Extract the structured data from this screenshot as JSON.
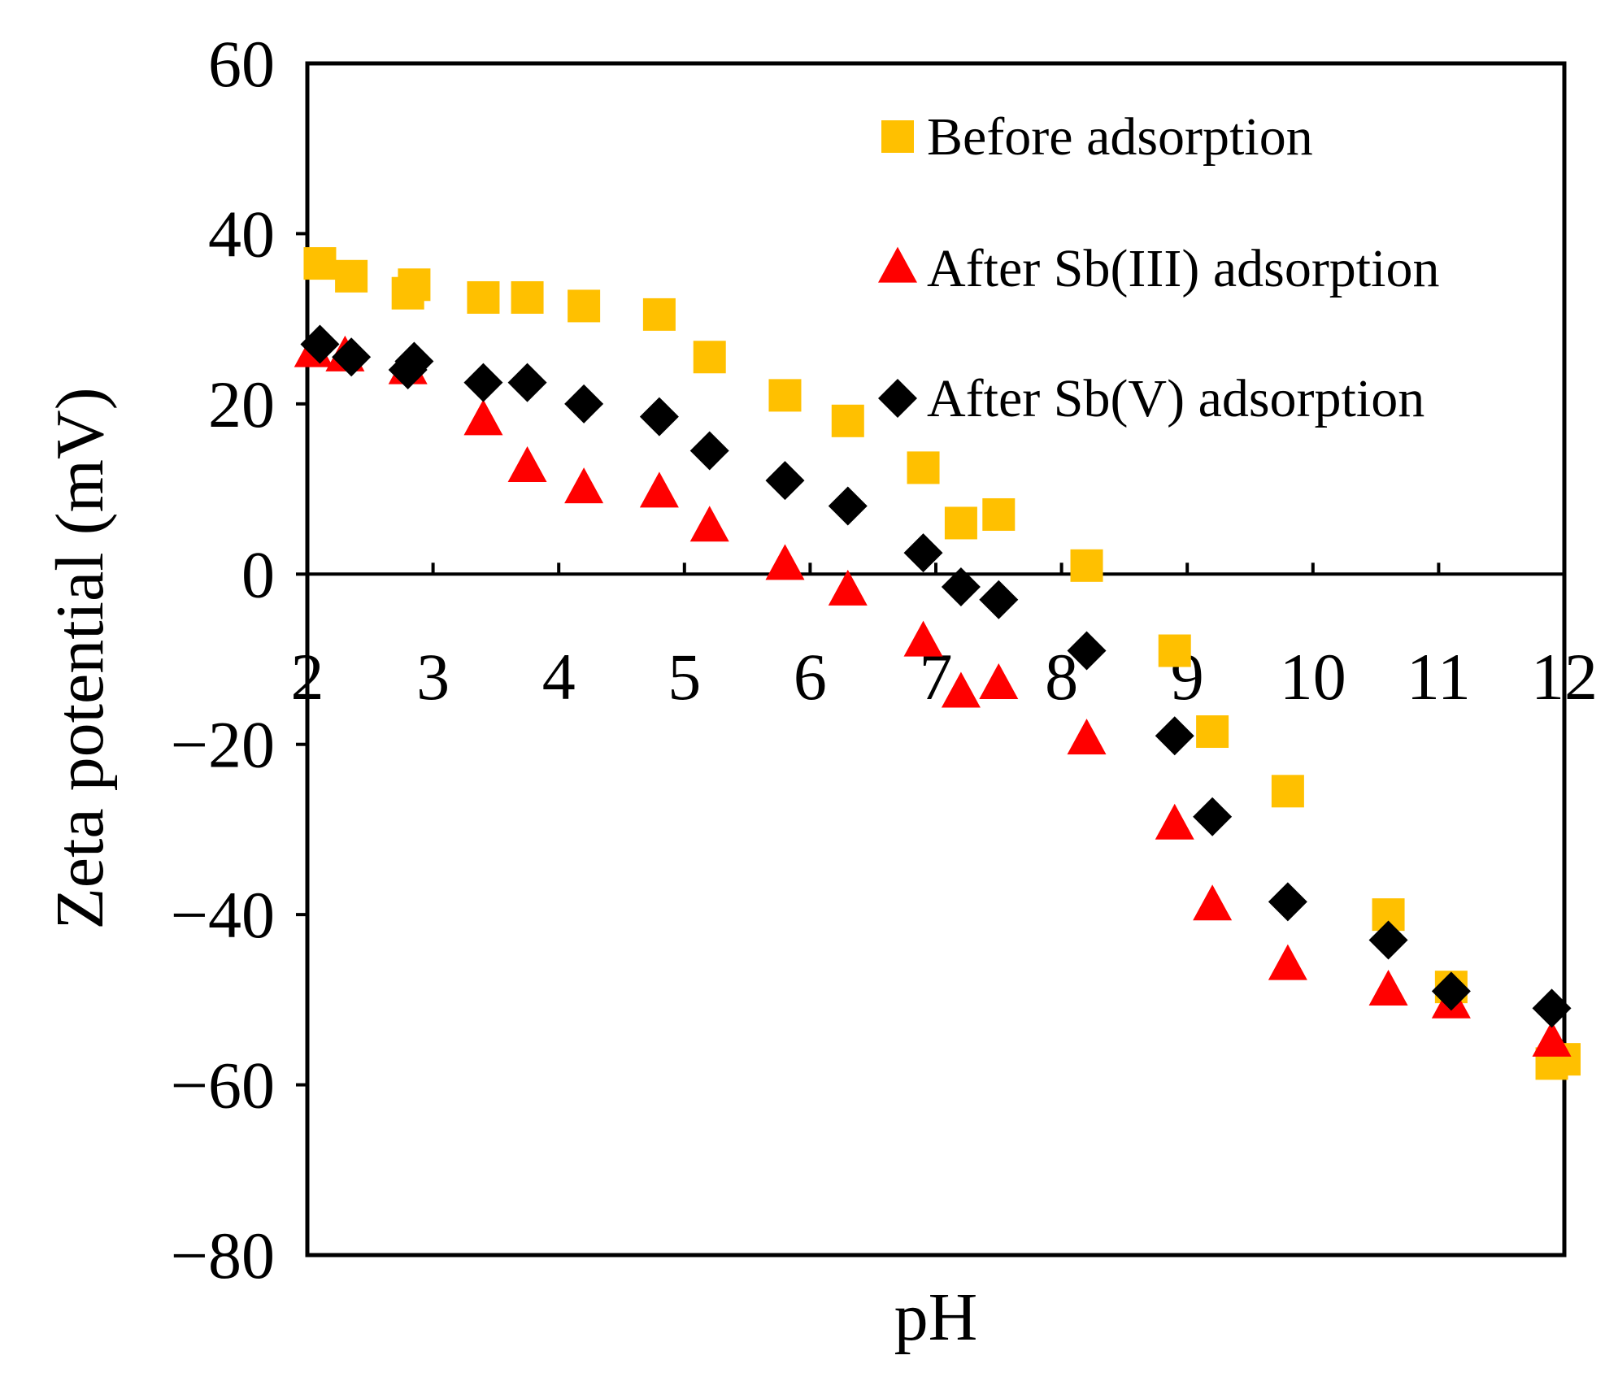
{
  "chart_data": {
    "type": "scatter",
    "title": "",
    "xlabel": "pH",
    "ylabel": "Zeta potential (mV)",
    "xlim": [
      2,
      12
    ],
    "ylim": [
      -80,
      60
    ],
    "x_ticks": [
      2,
      3,
      4,
      5,
      6,
      7,
      8,
      9,
      10,
      11,
      12
    ],
    "y_ticks": [
      60,
      40,
      20,
      0,
      -20,
      -40,
      -60,
      -80
    ],
    "y_tick_labels": [
      "60",
      "40",
      "20",
      "0",
      "−20",
      "−40",
      "−60",
      "−80"
    ],
    "grid": false,
    "legend_position": "top-right",
    "series": [
      {
        "name": "Before adsorption",
        "marker": "square",
        "color": "#FFC000",
        "points": [
          [
            2.1,
            36.5
          ],
          [
            2.35,
            35.0
          ],
          [
            2.8,
            33.0
          ],
          [
            2.85,
            34.0
          ],
          [
            3.4,
            32.5
          ],
          [
            3.75,
            32.5
          ],
          [
            4.2,
            31.5
          ],
          [
            4.8,
            30.5
          ],
          [
            5.2,
            25.5
          ],
          [
            5.8,
            21.0
          ],
          [
            6.3,
            18.0
          ],
          [
            6.9,
            12.5
          ],
          [
            7.2,
            6.0
          ],
          [
            7.5,
            7.0
          ],
          [
            8.2,
            1.0
          ],
          [
            8.9,
            -9.0
          ],
          [
            9.2,
            -18.5
          ],
          [
            9.8,
            -25.5
          ],
          [
            10.6,
            -40.0
          ],
          [
            11.1,
            -48.5
          ],
          [
            11.9,
            -57.5
          ],
          [
            12.0,
            -57.0
          ]
        ]
      },
      {
        "name": "After Sb(III) adsorption",
        "marker": "triangle",
        "color": "#FF0000",
        "points": [
          [
            2.05,
            26.0
          ],
          [
            2.3,
            25.5
          ],
          [
            2.8,
            24.0
          ],
          [
            3.4,
            18.0
          ],
          [
            3.75,
            12.5
          ],
          [
            4.2,
            10.0
          ],
          [
            4.8,
            9.5
          ],
          [
            5.2,
            5.5
          ],
          [
            5.8,
            1.0
          ],
          [
            6.3,
            -2.0
          ],
          [
            6.9,
            -8.0
          ],
          [
            7.2,
            -14.0
          ],
          [
            7.5,
            -13.0
          ],
          [
            8.2,
            -19.5
          ],
          [
            8.9,
            -29.5
          ],
          [
            9.2,
            -39.0
          ],
          [
            9.8,
            -46.0
          ],
          [
            10.6,
            -49.0
          ],
          [
            11.1,
            -50.5
          ],
          [
            11.9,
            -55.0
          ]
        ]
      },
      {
        "name": "After Sb(V) adsorption",
        "marker": "diamond",
        "color": "#000000",
        "points": [
          [
            2.1,
            27.0
          ],
          [
            2.35,
            25.5
          ],
          [
            2.8,
            24.0
          ],
          [
            2.85,
            25.0
          ],
          [
            3.4,
            22.5
          ],
          [
            3.75,
            22.5
          ],
          [
            4.2,
            20.0
          ],
          [
            4.8,
            18.5
          ],
          [
            5.2,
            14.5
          ],
          [
            5.8,
            11.0
          ],
          [
            6.3,
            8.0
          ],
          [
            6.9,
            2.5
          ],
          [
            7.2,
            -1.5
          ],
          [
            7.5,
            -3.0
          ],
          [
            8.2,
            -9.0
          ],
          [
            8.9,
            -19.0
          ],
          [
            9.2,
            -28.5
          ],
          [
            9.8,
            -38.5
          ],
          [
            10.6,
            -43.0
          ],
          [
            11.1,
            -49.0
          ],
          [
            11.9,
            -51.0
          ]
        ]
      }
    ]
  }
}
